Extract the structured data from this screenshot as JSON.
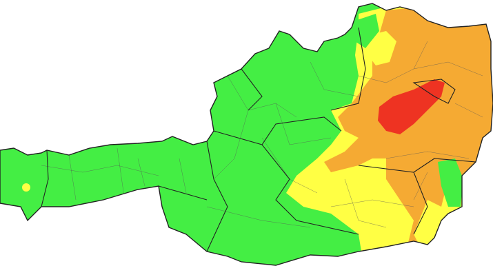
{
  "map": {
    "colors": [
      "#44ee44",
      "#ffff44",
      "#f5aa33",
      "#ee3322"
    ],
    "border_color": "#222222"
  }
}
